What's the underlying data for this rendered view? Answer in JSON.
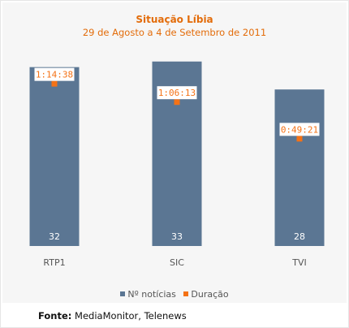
{
  "chart_data": {
    "type": "bar",
    "title": "Situação Líbia",
    "subtitle": "29 de Agosto a 4 de Setembro de 2011",
    "categories": [
      "RTP1",
      "SIC",
      "TVI"
    ],
    "series": [
      {
        "name": "Nº notícias",
        "type": "bar",
        "values": [
          32,
          33,
          28
        ],
        "color": "#5b7693"
      },
      {
        "name": "Duração",
        "type": "scatter",
        "values": [
          "1:14:38",
          "1:06:13",
          "0:49:21"
        ],
        "values_seconds": [
          4478,
          3973,
          2961
        ],
        "color": "#f47216"
      }
    ],
    "y_left_range": [
      0,
      35
    ],
    "y_right_range_seconds": [
      0,
      5400
    ],
    "grid": false,
    "legend": "bottom"
  },
  "source": {
    "label": "Fonte:",
    "text": "MediaMonitor, Telenews"
  }
}
